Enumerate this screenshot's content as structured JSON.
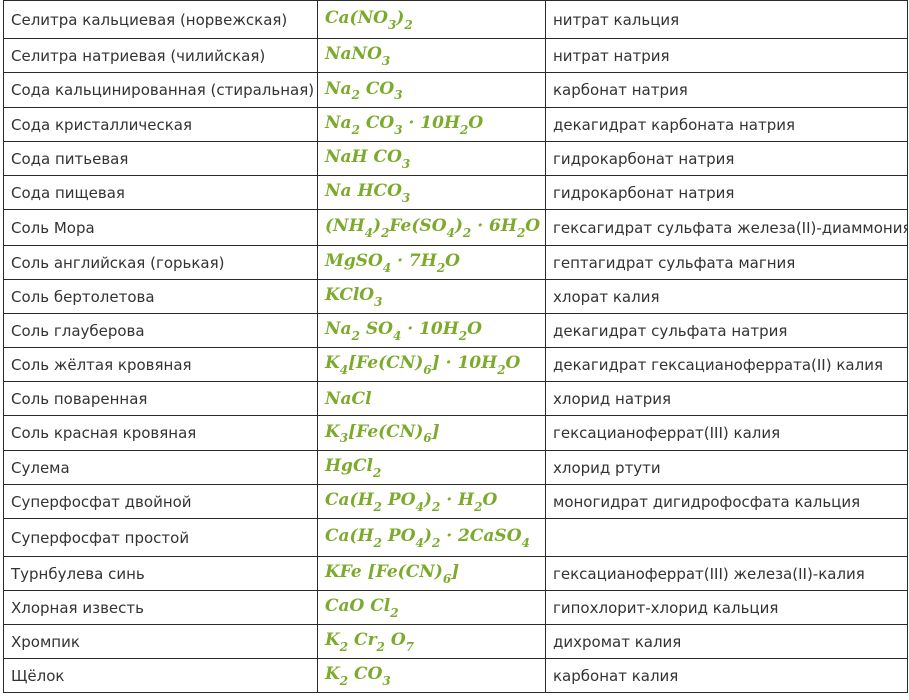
{
  "rows": [
    {
      "name": "Селитра кальциевая (норвежская)",
      "formula": "Ca(NO<sub>3</sub>)<sub>2</sub>",
      "desc": "нитрат кальция"
    },
    {
      "name": "Селитра натриевая (чилийская)",
      "formula": "NaNO<sub>3</sub>",
      "desc": "нитрат натрия"
    },
    {
      "name": "Сода кальцинированная (стиральная)",
      "formula": "Na<sub>2</sub> CO<sub>3</sub>",
      "desc": "карбонат натрия"
    },
    {
      "name": "Сода кристаллическая",
      "formula": "Na<sub>2</sub> CO<sub>3</sub> · 10H<sub>2</sub>O",
      "desc": "декагидрат карбоната натрия"
    },
    {
      "name": "Сода питьевая",
      "formula": "NaH CO<sub>3</sub>",
      "desc": "гидрокарбонат натрия"
    },
    {
      "name": "Сода пищевая",
      "formula": "Na HCO<sub>3</sub>",
      "desc": "гидрокарбонат натрия"
    },
    {
      "name": "Соль Мора",
      "formula": "(NH<sub>4</sub>)<sub>2</sub>Fe(SO<sub>4</sub>)<sub>2</sub> · 6H<sub>2</sub>O",
      "desc": "гексагидрат сульфата железа(II)-диаммония"
    },
    {
      "name": "Соль английская (горькая)",
      "formula": "MgSO<sub>4</sub> · 7H<sub>2</sub>O",
      "desc": "гептагидрат сульфата магния"
    },
    {
      "name": "Соль бертолетова",
      "formula": "KClO<sub>3</sub>",
      "desc": "хлорат калия"
    },
    {
      "name": "Соль глауберова",
      "formula": "Na<sub>2</sub> SO<sub>4</sub> · 10H<sub>2</sub>O",
      "desc": "декагидрат сульфата натрия"
    },
    {
      "name": "Соль жёлтая кровяная",
      "formula": "K<sub>4</sub>[Fe(CN)<sub>6</sub>] · 10H<sub>2</sub>O",
      "desc": "декагидрат гексацианоферрата(II) калия"
    },
    {
      "name": "Соль поваренная",
      "formula": "NaCl",
      "desc": "хлорид натрия"
    },
    {
      "name": "Соль красная кровяная",
      "formula": "K<sub>3</sub>[Fe(CN)<sub>6</sub>]",
      "desc": "гексацианоферрат(III) калия"
    },
    {
      "name": "Сулема",
      "formula": "HgCl<sub>2</sub>",
      "desc": "хлорид ртути"
    },
    {
      "name": "Суперфосфат двойной",
      "formula": "Ca(H<sub>2</sub> PO<sub>4</sub>)<sub>2</sub> · H<sub>2</sub>O",
      "desc": "моногидрат дигидрофосфата кальция"
    },
    {
      "name": "Суперфосфат простой",
      "formula": "Ca(H<sub>2</sub> PO<sub>4</sub>)<sub>2</sub> · 2CaSO<sub>4</sub>",
      "desc": ""
    },
    {
      "name": "Турнбулева синь",
      "formula": "KFe [Fe(CN)<sub>6</sub>]",
      "desc": "гексацианоферрат(III) железа(II)-калия"
    },
    {
      "name": "Хлорная известь",
      "formula": "CaO Cl<sub>2</sub>",
      "desc": "гипохлорит-хлорид кальция"
    },
    {
      "name": "Хромпик",
      "formula": "K<sub>2</sub> Cr<sub>2</sub> O<sub>7</sub>",
      "desc": "дихромат калия"
    },
    {
      "name": "Щёлок",
      "formula": "K<sub>2</sub> CO<sub>3</sub>",
      "desc": "карбонат калия"
    }
  ],
  "colors": {
    "formula": "#7cab2c",
    "text": "#333333",
    "border": "#2a2a2a"
  }
}
